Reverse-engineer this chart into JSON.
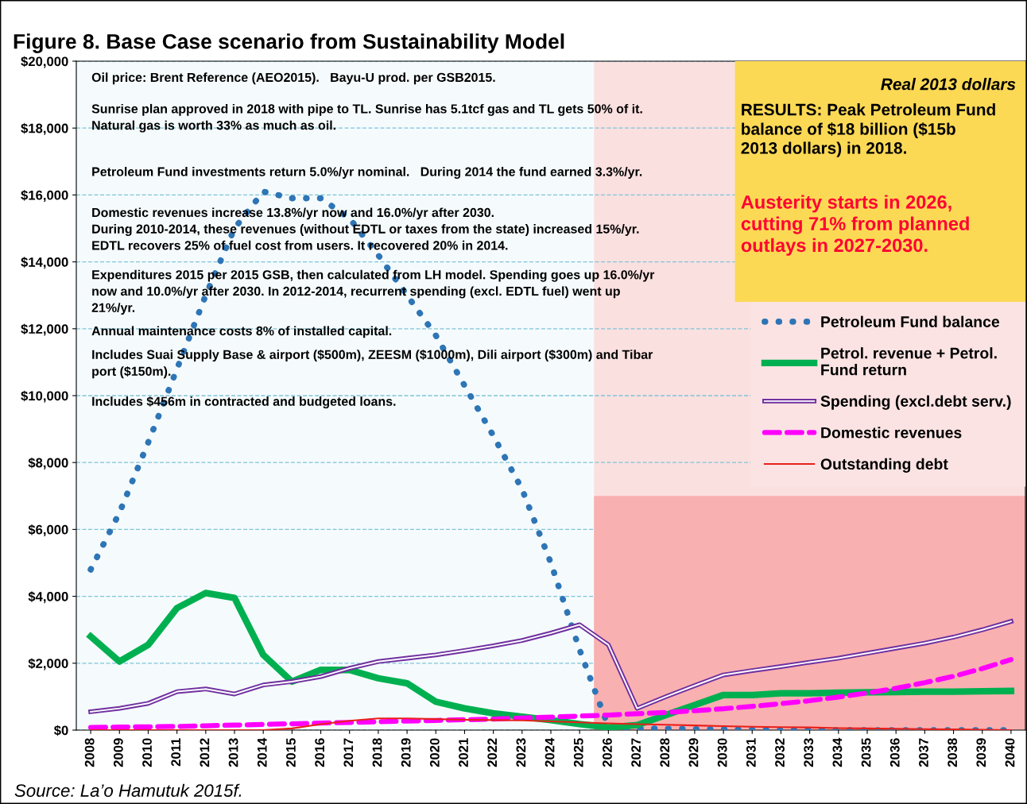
{
  "chart_data": {
    "type": "line",
    "title": "Figure 8. Base Case scenario from Sustainability Model",
    "categories": [
      "2008",
      "2009",
      "2010",
      "2011",
      "2012",
      "2013",
      "2014",
      "2015",
      "2016",
      "2017",
      "2018",
      "2019",
      "2020",
      "2021",
      "2022",
      "2023",
      "2024",
      "2025",
      "2026",
      "2027",
      "2028",
      "2029",
      "2030",
      "2031",
      "2032",
      "2033",
      "2034",
      "2035",
      "2036",
      "2037",
      "2038",
      "2039",
      "2040"
    ],
    "ylim": [
      0,
      20000
    ],
    "yticks": [
      {
        "value": 0,
        "label": "$0"
      },
      {
        "value": 2000,
        "label": "$2,000"
      },
      {
        "value": 4000,
        "label": "$4,000"
      },
      {
        "value": 6000,
        "label": "$6,000"
      },
      {
        "value": 8000,
        "label": "$8,000"
      },
      {
        "value": 10000,
        "label": "$10,000"
      },
      {
        "value": 12000,
        "label": "$12,000"
      },
      {
        "value": 14000,
        "label": "$14,000"
      },
      {
        "value": 16000,
        "label": "$16,000"
      },
      {
        "value": 18000,
        "label": "$18,000"
      },
      {
        "value": 20000,
        "label": "$20,000"
      }
    ],
    "grid": "y",
    "legend": "right",
    "series": [
      {
        "name": "Petroleum Fund balance",
        "color": "#2e75b6",
        "line_style": "dotted",
        "values": [
          4800,
          6500,
          8600,
          10800,
          13000,
          15000,
          16100,
          15900,
          15900,
          15300,
          14200,
          13000,
          11800,
          10300,
          8800,
          7200,
          5000,
          2400,
          100,
          50,
          40,
          30,
          20,
          10,
          0,
          0,
          0,
          0,
          0,
          0,
          0,
          0,
          0
        ]
      },
      {
        "name": "Petrol. revenue + Petrol.\nFund return",
        "color": "#00b050",
        "line_style": "solid",
        "values": [
          2800,
          2050,
          2550,
          3650,
          4100,
          3950,
          2250,
          1450,
          1800,
          1800,
          1550,
          1400,
          850,
          650,
          500,
          400,
          300,
          180,
          80,
          150,
          450,
          750,
          1050,
          1050,
          1100,
          1100,
          1120,
          1130,
          1140,
          1150,
          1150,
          1160,
          1170
        ]
      },
      {
        "name": "Spending (excl.debt serv.)",
        "color": "#7030a0",
        "line_style": "solid",
        "values": [
          550,
          650,
          800,
          1150,
          1230,
          1080,
          1350,
          1450,
          1600,
          1850,
          2050,
          2150,
          2250,
          2380,
          2520,
          2680,
          2900,
          3150,
          2550,
          650,
          1000,
          1330,
          1650,
          1780,
          1900,
          2030,
          2150,
          2300,
          2450,
          2600,
          2780,
          3000,
          3250
        ]
      },
      {
        "name": "Domestic revenues",
        "color": "#ff00ff",
        "line_style": "dashed",
        "values": [
          80,
          90,
          100,
          110,
          130,
          150,
          170,
          190,
          210,
          230,
          250,
          270,
          290,
          310,
          330,
          360,
          390,
          420,
          450,
          490,
          530,
          580,
          640,
          710,
          790,
          880,
          990,
          1110,
          1250,
          1420,
          1610,
          1840,
          2110
        ]
      },
      {
        "name": "Outstanding debt",
        "color": "#e8201a",
        "line_style": "solid",
        "values": [
          0,
          0,
          0,
          0,
          0,
          0,
          0,
          50,
          180,
          280,
          350,
          350,
          330,
          310,
          300,
          290,
          260,
          230,
          200,
          180,
          160,
          140,
          120,
          100,
          90,
          80,
          60,
          50,
          40,
          30,
          20,
          10,
          0
        ]
      }
    ],
    "bands": [
      {
        "axis": "x",
        "from": "2026",
        "to": "2040",
        "color": "#fbe0e0"
      },
      {
        "axis": "y",
        "from": 0,
        "to": 7000,
        "color": "#f9b0b0"
      }
    ],
    "annotations": [
      "Oil price: Brent Reference (AEO2015).   Bayu-U prod. per GSB2015.",
      "Sunrise plan approved in 2018 with pipe to TL. Sunrise has 5.1tcf gas and TL gets 50% of it.\nNatural gas is worth 33% as much as oil.",
      "Petroleum Fund investments return 5.0%/yr nominal.   During 2014 the fund earned 3.3%/yr.",
      "Domestic revenues increase 13.8%/yr now and 16.0%/yr after 2030.\nDuring 2010-2014, these revenues (without EDTL or taxes from the state) increased 15%/yr.\nEDTL recovers 25% of fuel cost from users. It recovered 20% in 2014.",
      "Expenditures 2015 per 2015 GSB, then calculated from LH model. Spending goes up 16.0%/yr\nnow and 10.0%/yr after 2030. In 2012-2014, recurrent spending (excl. EDTL fuel) went up\n21%/yr.",
      "Annual maintenance costs 8% of installed capital.",
      "Includes Suai Supply Base & airport ($500m), ZEESM ($1000m), Dili airport ($300m) and Tibar\nport ($150m).",
      "Includes $456m in contracted and budgeted loans.",
      "Real 2013 dollars",
      "RESULTS: Peak Petroleum Fund\nbalance of $18 billion ($15b\n2013 dollars) in 2018.",
      "Austerity starts in 2026,\ncutting 71% from planned\noutlays in 2027-2030.",
      "Source: La’o Hamutuk 2015f."
    ]
  }
}
